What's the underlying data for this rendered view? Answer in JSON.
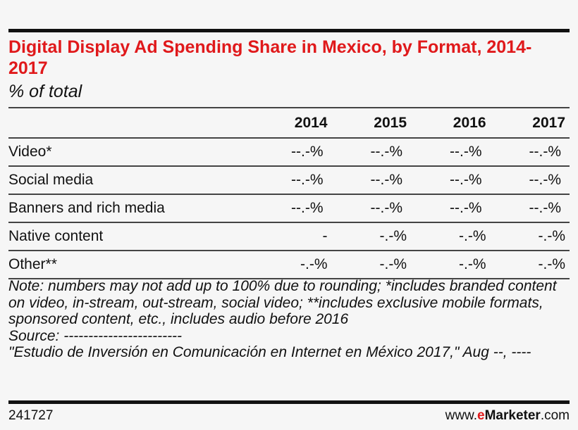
{
  "chart_data": {
    "type": "table",
    "title": "Digital Display Ad Spending Share in Mexico, by Format, 2014-2017",
    "subtitle": "% of total",
    "columns": [
      "2014",
      "2015",
      "2016",
      "2017"
    ],
    "rows": [
      {
        "label": "Video*",
        "values": [
          "--.-%",
          "--.-%",
          "--.-%",
          "--.-%"
        ]
      },
      {
        "label": "Social media",
        "values": [
          "--.-%",
          "--.-%",
          "--.-%",
          "--.-%"
        ]
      },
      {
        "label": "Banners and rich media",
        "values": [
          "--.-%",
          "--.-%",
          "--.-%",
          "--.-%"
        ]
      },
      {
        "label": "Native content",
        "values": [
          "-",
          "-.-%",
          "-.-%",
          "-.-%"
        ]
      },
      {
        "label": "Other**",
        "values": [
          "-.-%",
          "-.-%",
          "-.-%",
          "-.-%"
        ]
      }
    ],
    "note": "Note: numbers may not add up to 100% due to rounding; *includes branded content on video, in-stream, out-stream, social video; **includes exclusive mobile formats, sponsored content, etc., includes audio before 2016",
    "source_label": "Source: ------------------------",
    "source_text": "\"Estudio de Inversión en Comunicación en Internet en México 2017,\" Aug --, ----"
  },
  "footer": {
    "id": "241727",
    "brand_prefix": "www.",
    "brand_e": "e",
    "brand_name": "Marketer",
    "brand_suffix": ".com"
  },
  "colors": {
    "title": "#e0191b",
    "background": "#f6f6f6"
  }
}
